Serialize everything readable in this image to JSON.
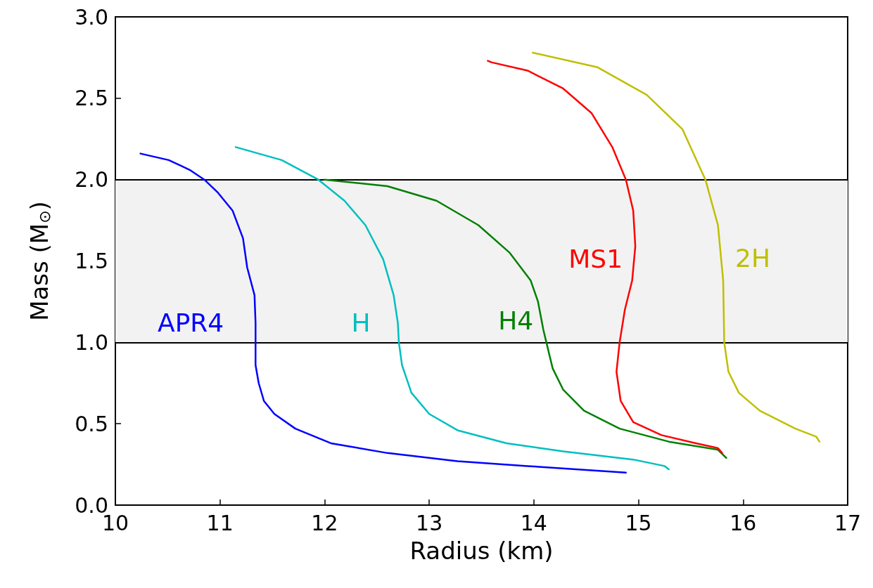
{
  "chart_data": {
    "type": "line",
    "xlabel": "Radius (km)",
    "ylabel": "Mass (M$_{⊙}$)",
    "xlim": [
      10,
      17
    ],
    "xticks": [
      10,
      11,
      12,
      13,
      14,
      15,
      16,
      17
    ],
    "ylim": [
      0,
      3
    ],
    "yticks": [
      {
        "value": 0,
        "label": "0.0"
      },
      {
        "value": 0.5,
        "label": "0.5"
      },
      {
        "value": 1,
        "label": "1.0"
      },
      {
        "value": 1.5,
        "label": "1.5"
      },
      {
        "value": 2,
        "label": "2.0"
      },
      {
        "value": 2.5,
        "label": "2.5"
      },
      {
        "value": 3,
        "label": "3.0"
      }
    ],
    "grid": false,
    "legend": false,
    "marker": "none",
    "line_style": "solid",
    "bands": [
      {
        "axis": "y",
        "from": 1,
        "to": 2,
        "color": "#f2f2f2"
      }
    ],
    "ref_lines": [
      {
        "axis": "y",
        "value": 1,
        "color": "#000000"
      },
      {
        "axis": "y",
        "value": 2,
        "color": "#000000"
      }
    ],
    "series": [
      {
        "name": "APR4",
        "color": "#0000ff",
        "x": [
          10.24,
          10.51,
          10.71,
          10.85,
          10.98,
          11.12,
          11.22,
          11.26,
          11.33,
          11.34,
          11.34,
          11.34,
          11.37,
          11.42,
          11.52,
          11.72,
          12.06,
          12.6,
          13.27,
          13.94,
          14.88
        ],
        "values": [
          2.16,
          2.12,
          2.06,
          2.0,
          1.92,
          1.81,
          1.64,
          1.46,
          1.29,
          1.12,
          1.0,
          0.86,
          0.75,
          0.64,
          0.56,
          0.47,
          0.38,
          0.32,
          0.27,
          0.24,
          0.2
        ]
      },
      {
        "name": "H",
        "color": "#00bfbf",
        "x": [
          11.15,
          11.59,
          11.94,
          12.19,
          12.39,
          12.56,
          12.66,
          12.7,
          12.71,
          12.74,
          12.83,
          13.0,
          13.27,
          13.74,
          14.28,
          14.95,
          15.25,
          15.29
        ],
        "values": [
          2.2,
          2.12,
          2.0,
          1.87,
          1.72,
          1.51,
          1.29,
          1.12,
          1.0,
          0.86,
          0.69,
          0.56,
          0.46,
          0.38,
          0.33,
          0.28,
          0.24,
          0.22
        ]
      },
      {
        "name": "H4",
        "color": "#008000",
        "x": [
          12.0,
          12.6,
          13.07,
          13.47,
          13.77,
          13.97,
          14.04,
          14.09,
          14.12,
          14.18,
          14.28,
          14.48,
          14.82,
          15.29,
          15.76,
          15.84
        ],
        "values": [
          2.0,
          1.96,
          1.87,
          1.72,
          1.55,
          1.38,
          1.25,
          1.08,
          1.0,
          0.84,
          0.71,
          0.58,
          0.47,
          0.39,
          0.34,
          0.29
        ]
      },
      {
        "name": "MS1",
        "color": "#ff0000",
        "x": [
          13.56,
          13.6,
          13.94,
          14.28,
          14.55,
          14.75,
          14.88,
          14.95,
          14.97,
          14.94,
          14.87,
          14.82,
          14.79,
          14.83,
          14.95,
          15.22,
          15.55,
          15.76,
          15.8
        ],
        "values": [
          2.73,
          2.72,
          2.67,
          2.56,
          2.41,
          2.2,
          2.0,
          1.81,
          1.59,
          1.38,
          1.2,
          1.0,
          0.82,
          0.64,
          0.51,
          0.43,
          0.38,
          0.35,
          0.32
        ]
      },
      {
        "name": "2H",
        "color": "#bfbf00",
        "x": [
          13.99,
          14.61,
          15.08,
          15.42,
          15.64,
          15.76,
          15.81,
          15.82,
          15.86,
          15.96,
          16.16,
          16.5,
          16.7,
          16.73
        ],
        "values": [
          2.78,
          2.69,
          2.52,
          2.31,
          2.0,
          1.72,
          1.38,
          1.0,
          0.82,
          0.69,
          0.58,
          0.47,
          0.42,
          0.39
        ]
      }
    ]
  }
}
